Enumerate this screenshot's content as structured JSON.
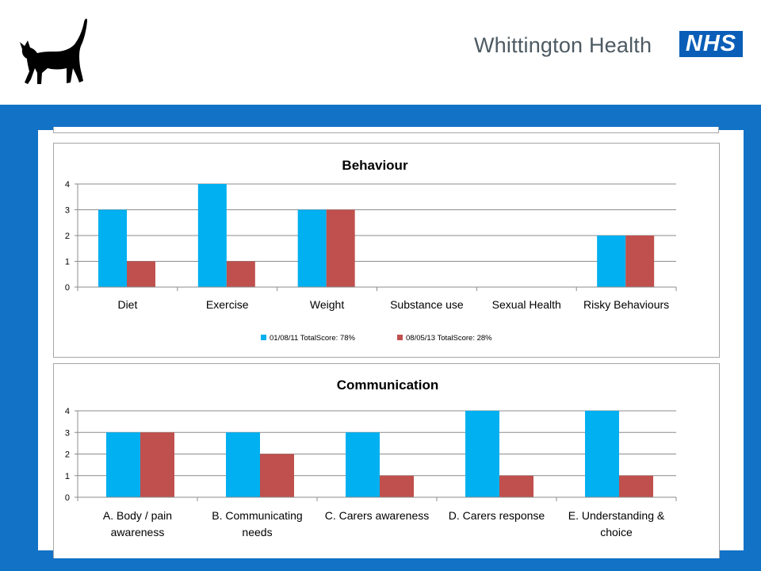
{
  "header": {
    "brand_name": "Whittington Health",
    "nhs_logo": "NHS",
    "logo_icon": "black-cat-icon"
  },
  "colors": {
    "band": "#1272c6",
    "series1": "#00b0f0",
    "series2": "#c0504d",
    "nhs_blue": "#0a5eb8"
  },
  "chart_data": [
    {
      "type": "bar",
      "title": "Behaviour",
      "categories": [
        "Diet",
        "Exercise",
        "Weight",
        "Substance use",
        "Sexual Health",
        "Risky Behaviours"
      ],
      "series": [
        {
          "name": "01/08/11 TotalScore: 78%",
          "values": [
            3,
            4,
            3,
            0,
            0,
            2
          ]
        },
        {
          "name": "08/05/13 TotalScore: 28%",
          "values": [
            1,
            1,
            3,
            0,
            0,
            2
          ]
        }
      ],
      "ylim": [
        0,
        4
      ],
      "yticks": [
        "0",
        "1",
        "2",
        "3",
        "4"
      ],
      "grid": true,
      "legend": "bottom"
    },
    {
      "type": "bar",
      "title": "Communication",
      "categories": [
        [
          "A. Body / pain",
          "awareness"
        ],
        [
          "B. Communicating",
          "needs"
        ],
        [
          "C. Carers awareness"
        ],
        [
          "D. Carers response"
        ],
        [
          "E. Understanding &",
          "choice"
        ]
      ],
      "series": [
        {
          "values": [
            3,
            3,
            3,
            4,
            4
          ]
        },
        {
          "values": [
            3,
            2,
            1,
            1,
            1
          ]
        }
      ],
      "ylim": [
        0,
        4
      ],
      "yticks": [
        "0",
        "1",
        "2",
        "3",
        "4"
      ],
      "grid": true,
      "legend": "none"
    }
  ]
}
